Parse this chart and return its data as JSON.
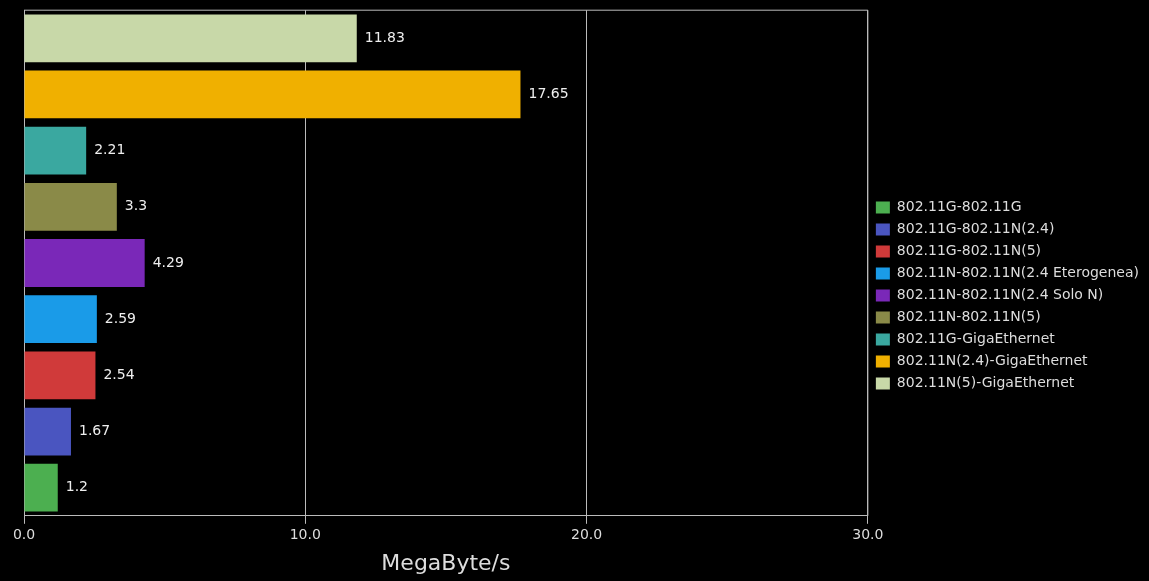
{
  "chart_data": {
    "type": "bar",
    "orientation": "horizontal",
    "xlabel": "MegaByte/s",
    "categories": [
      null,
      null,
      null,
      null,
      null,
      null,
      null,
      null,
      null
    ],
    "series": [
      {
        "name": "802.11G-802.11G",
        "color": "#4caf50",
        "values": [
          null,
          null,
          null,
          null,
          null,
          null,
          null,
          null,
          1.2
        ]
      },
      {
        "name": "802.11G-802.11N(2.4)",
        "color": "#4a55c0",
        "values": [
          null,
          null,
          null,
          null,
          null,
          null,
          null,
          1.67,
          null
        ]
      },
      {
        "name": "802.11G-802.11N(5)",
        "color": "#d03a3a",
        "values": [
          null,
          null,
          null,
          null,
          null,
          null,
          2.54,
          null,
          null
        ]
      },
      {
        "name": "802.11N-802.11N(2.4 Eterogenea)",
        "color": "#1a9be8",
        "values": [
          null,
          null,
          null,
          null,
          null,
          2.59,
          null,
          null,
          null
        ]
      },
      {
        "name": "802.11N-802.11N(2.4 Solo N)",
        "color": "#7a28b8",
        "values": [
          null,
          null,
          null,
          null,
          4.29,
          null,
          null,
          null,
          null
        ]
      },
      {
        "name": "802.11N-802.11N(5)",
        "color": "#8a8a48",
        "values": [
          null,
          null,
          null,
          3.3,
          null,
          null,
          null,
          null,
          null
        ]
      },
      {
        "name": "802.11G-GigaEthernet",
        "color": "#3aa8a0",
        "values": [
          null,
          null,
          2.21,
          null,
          null,
          null,
          null,
          null,
          null
        ]
      },
      {
        "name": "802.11N(2.4)-GigaEthernet",
        "color": "#f0b000",
        "values": [
          null,
          17.65,
          null,
          null,
          null,
          null,
          null,
          null,
          null
        ]
      },
      {
        "name": "802.11N(5)-GigaEthernet",
        "color": "#c8d8a8",
        "values": [
          11.83,
          null,
          null,
          null,
          null,
          null,
          null,
          null,
          null
        ]
      }
    ],
    "xlim": [
      0,
      30
    ],
    "xticks": [
      {
        "value": 0,
        "label": "0.0"
      },
      {
        "value": 10,
        "label": "10.0"
      },
      {
        "value": 20,
        "label": "20.0"
      },
      {
        "value": 30,
        "label": "30.0"
      }
    ],
    "grid": "x",
    "legend": "right",
    "data_labels": true
  }
}
